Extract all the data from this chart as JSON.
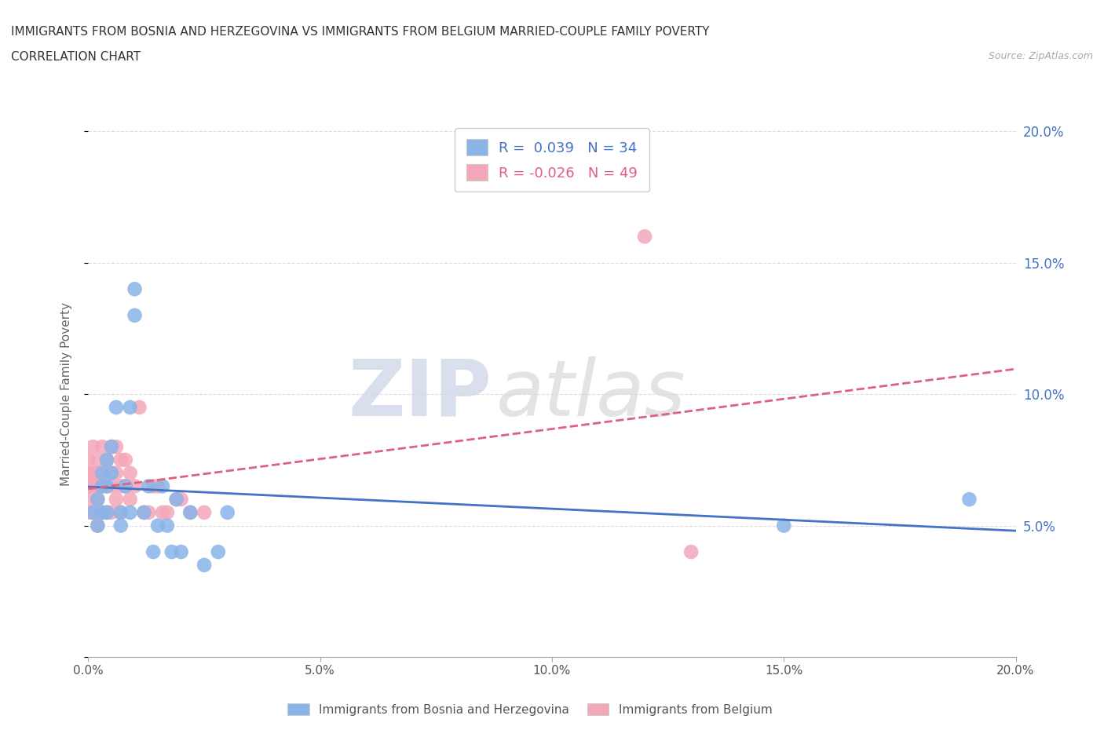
{
  "title_line1": "IMMIGRANTS FROM BOSNIA AND HERZEGOVINA VS IMMIGRANTS FROM BELGIUM MARRIED-COUPLE FAMILY POVERTY",
  "title_line2": "CORRELATION CHART",
  "source_text": "Source: ZipAtlas.com",
  "ylabel": "Married-Couple Family Poverty",
  "xlim": [
    0.0,
    0.2
  ],
  "ylim": [
    0.0,
    0.2
  ],
  "xtick_labels": [
    "0.0%",
    "5.0%",
    "10.0%",
    "15.0%",
    "20.0%"
  ],
  "xtick_vals": [
    0.0,
    0.05,
    0.1,
    0.15,
    0.2
  ],
  "ytick_labels": [
    "",
    "5.0%",
    "10.0%",
    "15.0%",
    "20.0%"
  ],
  "ytick_vals": [
    0.0,
    0.05,
    0.1,
    0.15,
    0.2
  ],
  "color_bosnia": "#8ab4e8",
  "color_belgium": "#f4a7b9",
  "color_line_bosnia": "#4472c4",
  "color_line_belgium": "#e06080",
  "R_bosnia": 0.039,
  "N_bosnia": 34,
  "R_belgium": -0.026,
  "N_belgium": 49,
  "watermark_zip": "ZIP",
  "watermark_atlas": "atlas",
  "grid_color": "#dddddd",
  "background_color": "#ffffff",
  "title_color": "#333333",
  "bosnia_scatter_x": [
    0.001,
    0.002,
    0.002,
    0.003,
    0.003,
    0.003,
    0.004,
    0.004,
    0.004,
    0.005,
    0.005,
    0.006,
    0.007,
    0.007,
    0.008,
    0.009,
    0.009,
    0.01,
    0.01,
    0.012,
    0.013,
    0.014,
    0.015,
    0.016,
    0.017,
    0.018,
    0.019,
    0.02,
    0.022,
    0.025,
    0.028,
    0.03,
    0.15,
    0.19
  ],
  "bosnia_scatter_y": [
    0.055,
    0.06,
    0.05,
    0.07,
    0.065,
    0.055,
    0.075,
    0.065,
    0.055,
    0.08,
    0.07,
    0.095,
    0.055,
    0.05,
    0.065,
    0.095,
    0.055,
    0.14,
    0.13,
    0.055,
    0.065,
    0.04,
    0.05,
    0.065,
    0.05,
    0.04,
    0.06,
    0.04,
    0.055,
    0.035,
    0.04,
    0.055,
    0.05,
    0.06
  ],
  "belgium_scatter_x": [
    0.0,
    0.0,
    0.0,
    0.0,
    0.0,
    0.001,
    0.001,
    0.001,
    0.001,
    0.002,
    0.002,
    0.002,
    0.002,
    0.002,
    0.003,
    0.003,
    0.003,
    0.003,
    0.004,
    0.004,
    0.004,
    0.005,
    0.005,
    0.005,
    0.005,
    0.006,
    0.006,
    0.006,
    0.007,
    0.007,
    0.007,
    0.008,
    0.008,
    0.009,
    0.009,
    0.01,
    0.011,
    0.012,
    0.013,
    0.014,
    0.015,
    0.016,
    0.017,
    0.019,
    0.02,
    0.022,
    0.025,
    0.12,
    0.13
  ],
  "belgium_scatter_y": [
    0.075,
    0.07,
    0.065,
    0.06,
    0.055,
    0.08,
    0.07,
    0.065,
    0.055,
    0.075,
    0.07,
    0.065,
    0.06,
    0.05,
    0.08,
    0.07,
    0.065,
    0.055,
    0.075,
    0.065,
    0.055,
    0.08,
    0.07,
    0.065,
    0.055,
    0.08,
    0.07,
    0.06,
    0.075,
    0.065,
    0.055,
    0.075,
    0.065,
    0.07,
    0.06,
    0.065,
    0.095,
    0.055,
    0.055,
    0.065,
    0.065,
    0.055,
    0.055,
    0.06,
    0.06,
    0.055,
    0.055,
    0.16,
    0.04
  ]
}
